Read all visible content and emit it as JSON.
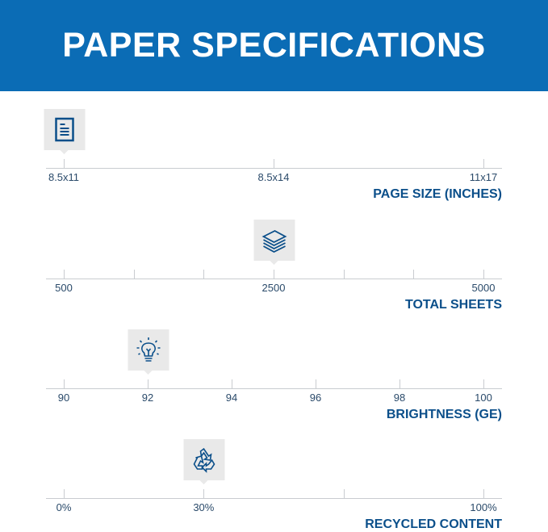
{
  "title": "PAPER SPECIFICATIONS",
  "colors": {
    "header": "#0b6cb5",
    "accent": "#0b4f8a",
    "marker_bg": "#e9e9e9"
  },
  "specs": [
    {
      "label": "PAGE SIZE (INCHES)",
      "icon": "document-icon",
      "ticks": [
        "8.5x11",
        "8.5x14",
        "11x17"
      ],
      "tick_count": 3,
      "selected": "8.5x11",
      "selected_index": 0
    },
    {
      "label": "TOTAL SHEETS",
      "icon": "paper-stack-icon",
      "ticks": [
        "500",
        "2500",
        "5000"
      ],
      "tick_labels_at": [
        0,
        3,
        6
      ],
      "tick_count": 7,
      "selected": "2500",
      "selected_index": 3
    },
    {
      "label": "BRIGHTNESS (GE)",
      "icon": "lightbulb-icon",
      "ticks": [
        "90",
        "92",
        "94",
        "96",
        "98",
        "100"
      ],
      "tick_count": 6,
      "selected": "92",
      "selected_index": 1
    },
    {
      "label": "RECYCLED CONTENT",
      "icon": "recycle-icon",
      "ticks": [
        "0%",
        "30%",
        "100%"
      ],
      "tick_labels_at": [
        0,
        1,
        3
      ],
      "tick_count": 4,
      "selected": "30%",
      "selected_index": 1
    }
  ]
}
